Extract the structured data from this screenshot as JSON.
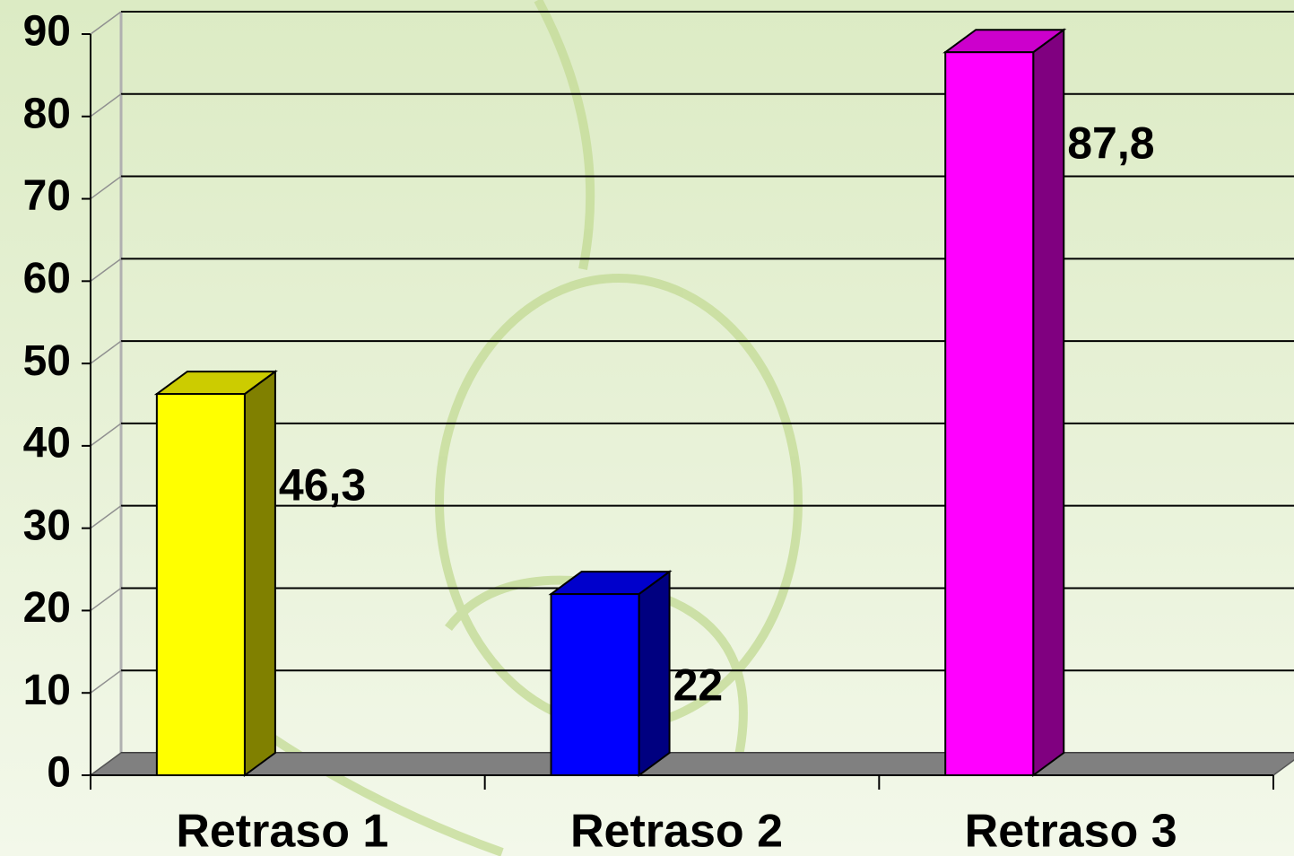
{
  "chart_data": {
    "type": "bar3d",
    "categories": [
      "Retraso 1",
      "Retraso 2",
      "Retraso 3"
    ],
    "values": [
      46.3,
      22,
      87.8
    ],
    "value_labels": [
      "46,3",
      "22",
      "87,8"
    ],
    "colors": [
      "#ffff00",
      "#0000ff",
      "#ff00ff"
    ],
    "ylim": [
      0,
      90
    ],
    "yticks": [
      0,
      10,
      20,
      30,
      40,
      50,
      60,
      70,
      80,
      90
    ],
    "grid": true
  }
}
